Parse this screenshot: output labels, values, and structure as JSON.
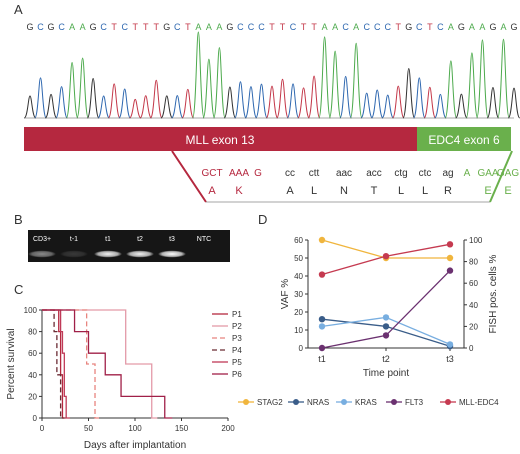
{
  "panelA": {
    "letter": "A",
    "sequence": [
      {
        "b": "G",
        "c": "#333333"
      },
      {
        "b": "C",
        "c": "#2f68b0"
      },
      {
        "b": "G",
        "c": "#333333"
      },
      {
        "b": "C",
        "c": "#2f68b0"
      },
      {
        "b": "A",
        "c": "#4daa4d"
      },
      {
        "b": "A",
        "c": "#4daa4d"
      },
      {
        "b": "G",
        "c": "#333333"
      },
      {
        "b": "C",
        "c": "#2f68b0"
      },
      {
        "b": "T",
        "c": "#c4394a"
      },
      {
        "b": "C",
        "c": "#2f68b0"
      },
      {
        "b": "T",
        "c": "#c4394a"
      },
      {
        "b": "T",
        "c": "#c4394a"
      },
      {
        "b": "T",
        "c": "#c4394a"
      },
      {
        "b": "G",
        "c": "#333333"
      },
      {
        "b": "C",
        "c": "#2f68b0"
      },
      {
        "b": "T",
        "c": "#c4394a"
      },
      {
        "b": "A",
        "c": "#4daa4d"
      },
      {
        "b": "A",
        "c": "#4daa4d"
      },
      {
        "b": "A",
        "c": "#4daa4d"
      },
      {
        "b": "G",
        "c": "#333333"
      },
      {
        "b": "C",
        "c": "#2f68b0"
      },
      {
        "b": "C",
        "c": "#2f68b0"
      },
      {
        "b": "C",
        "c": "#2f68b0"
      },
      {
        "b": "T",
        "c": "#c4394a"
      },
      {
        "b": "T",
        "c": "#c4394a"
      },
      {
        "b": "C",
        "c": "#2f68b0"
      },
      {
        "b": "T",
        "c": "#c4394a"
      },
      {
        "b": "T",
        "c": "#c4394a"
      },
      {
        "b": "A",
        "c": "#4daa4d"
      },
      {
        "b": "A",
        "c": "#4daa4d"
      },
      {
        "b": "C",
        "c": "#2f68b0"
      },
      {
        "b": "A",
        "c": "#4daa4d"
      },
      {
        "b": "C",
        "c": "#2f68b0"
      },
      {
        "b": "C",
        "c": "#2f68b0"
      },
      {
        "b": "C",
        "c": "#2f68b0"
      },
      {
        "b": "T",
        "c": "#c4394a"
      },
      {
        "b": "G",
        "c": "#333333"
      },
      {
        "b": "C",
        "c": "#2f68b0"
      },
      {
        "b": "T",
        "c": "#c4394a"
      },
      {
        "b": "C",
        "c": "#2f68b0"
      },
      {
        "b": "A",
        "c": "#4daa4d"
      },
      {
        "b": "G",
        "c": "#333333"
      },
      {
        "b": "A",
        "c": "#4daa4d"
      },
      {
        "b": "A",
        "c": "#4daa4d"
      },
      {
        "b": "G",
        "c": "#333333"
      },
      {
        "b": "A",
        "c": "#4daa4d"
      },
      {
        "b": "G",
        "c": "#333333"
      }
    ],
    "exon_left": "MLL exon 13",
    "exon_right": "EDC4 exon 6",
    "exon_left_color": "#b5283f",
    "exon_right_color": "#6ab04c",
    "codons": [
      {
        "codon": "GCT",
        "aa": "A",
        "color": "#b5283f"
      },
      {
        "codon": "AAA",
        "aa": "K",
        "color": "#b5283f"
      },
      {
        "codon": "G",
        "aa": "",
        "color": "#b5283f"
      },
      {
        "codon": "cc",
        "aa": "A",
        "color": "#333333"
      },
      {
        "codon": "ctt",
        "aa": "L",
        "color": "#333333"
      },
      {
        "codon": "aac",
        "aa": "N",
        "color": "#333333"
      },
      {
        "codon": "acc",
        "aa": "T",
        "color": "#333333"
      },
      {
        "codon": "ctg",
        "aa": "L",
        "color": "#333333"
      },
      {
        "codon": "ctc",
        "aa": "L",
        "color": "#333333"
      },
      {
        "codon": "ag",
        "aa": "R",
        "color": "#333333"
      },
      {
        "codon": "A",
        "aa": "",
        "color": "#6ab04c"
      },
      {
        "codon": "GAA",
        "aa": "E",
        "color": "#6ab04c"
      },
      {
        "codon": "GAG",
        "aa": "E",
        "color": "#6ab04c"
      }
    ]
  },
  "panelB": {
    "letter": "B",
    "lanes": [
      "CD3+",
      "t-1",
      "t1",
      "t2",
      "t3",
      "NTC"
    ],
    "band_intensity": [
      0.5,
      0.15,
      0.95,
      0.95,
      1.0,
      0.0
    ]
  },
  "panelC": {
    "letter": "C",
    "chart_data": {
      "type": "line",
      "xlabel": "Days after implantation",
      "ylabel": "Percent survival",
      "xlim": [
        0,
        200
      ],
      "ylim": [
        0,
        100
      ],
      "xticks": [
        0,
        50,
        100,
        150,
        200
      ],
      "yticks": [
        0,
        20,
        40,
        60,
        80,
        100
      ],
      "series": [
        {
          "name": "P1",
          "color": "#b5283f",
          "dash": "",
          "steps": [
            [
              0,
              100
            ],
            [
              18,
              100
            ],
            [
              18,
              80
            ],
            [
              20,
              80
            ],
            [
              20,
              40
            ],
            [
              22,
              40
            ],
            [
              22,
              0
            ],
            [
              25,
              0
            ]
          ]
        },
        {
          "name": "P2",
          "color": "#e39aa8",
          "dash": "",
          "steps": [
            [
              0,
              100
            ],
            [
              90,
              100
            ],
            [
              90,
              50
            ],
            [
              118,
              50
            ],
            [
              118,
              0
            ],
            [
              124,
              0
            ]
          ]
        },
        {
          "name": "P3",
          "color": "#e8857f",
          "dash": "5,3",
          "steps": [
            [
              0,
              100
            ],
            [
              48,
              100
            ],
            [
              48,
              50
            ],
            [
              57,
              50
            ],
            [
              57,
              0
            ],
            [
              62,
              0
            ]
          ]
        },
        {
          "name": "P4",
          "color": "#6b2a33",
          "dash": "5,3",
          "steps": [
            [
              0,
              100
            ],
            [
              13,
              100
            ],
            [
              13,
              80
            ],
            [
              16,
              80
            ],
            [
              16,
              40
            ],
            [
              20,
              40
            ],
            [
              20,
              0
            ],
            [
              24,
              0
            ]
          ]
        },
        {
          "name": "P5",
          "color": "#c03a58",
          "dash": "",
          "steps": [
            [
              0,
              100
            ],
            [
              20,
              100
            ],
            [
              20,
              80
            ],
            [
              22,
              80
            ],
            [
              22,
              60
            ],
            [
              24,
              60
            ],
            [
              24,
              20
            ],
            [
              26,
              20
            ],
            [
              26,
              0
            ],
            [
              30,
              0
            ]
          ]
        },
        {
          "name": "P6",
          "color": "#a02048",
          "dash": "",
          "steps": [
            [
              0,
              100
            ],
            [
              35,
              100
            ],
            [
              35,
              80
            ],
            [
              50,
              80
            ],
            [
              50,
              60
            ],
            [
              68,
              60
            ],
            [
              68,
              40
            ],
            [
              85,
              40
            ],
            [
              85,
              20
            ],
            [
              132,
              20
            ],
            [
              132,
              0
            ],
            [
              140,
              0
            ]
          ]
        }
      ]
    }
  },
  "panelD": {
    "letter": "D",
    "chart_data": {
      "type": "line",
      "xlabel": "Time point",
      "ylabel": "VAF %",
      "ylabel_right": "FISH pos. cells %",
      "categories": [
        "t1",
        "t2",
        "t3"
      ],
      "ylim": [
        0,
        60
      ],
      "yticks": [
        0,
        10,
        20,
        30,
        40,
        50,
        60
      ],
      "ylim_right": [
        0,
        100
      ],
      "yticks_right": [
        0,
        20,
        40,
        60,
        80,
        100
      ],
      "series": [
        {
          "name": "STAG2",
          "color": "#f0b53d",
          "axis": "left",
          "values": [
            60,
            50,
            50
          ]
        },
        {
          "name": "NRAS",
          "color": "#3a5d89",
          "axis": "left",
          "values": [
            16,
            12,
            1
          ]
        },
        {
          "name": "KRAS",
          "color": "#78aee0",
          "axis": "left",
          "values": [
            12,
            17,
            2
          ]
        },
        {
          "name": "FLT3",
          "color": "#6b3170",
          "axis": "left",
          "values": [
            0,
            7,
            43
          ]
        },
        {
          "name": "MLL-EDC4",
          "color": "#c53a50",
          "axis": "right",
          "values": [
            68,
            85,
            96
          ]
        }
      ]
    }
  }
}
